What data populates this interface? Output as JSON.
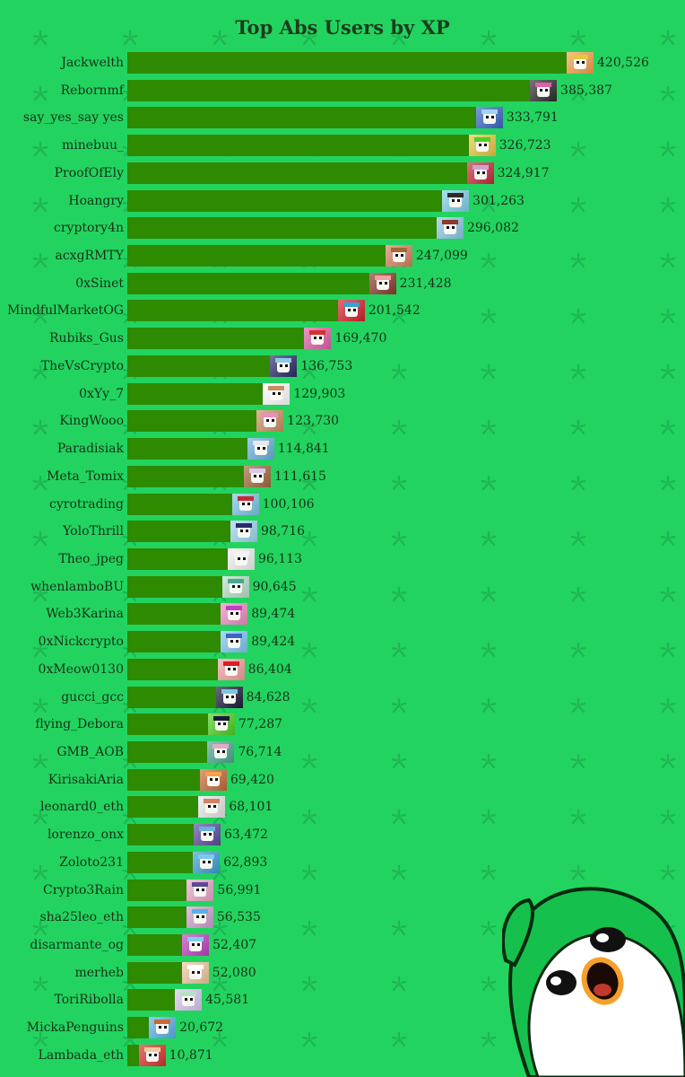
{
  "chart_data": {
    "type": "bar",
    "orientation": "horizontal",
    "title": "Top Abs Users by XP",
    "xlabel": "",
    "ylabel": "",
    "xlim": [
      0,
      420526
    ],
    "grid": false,
    "legend": "none",
    "categories": [
      "Jackwelth",
      "Rebornmf",
      "say_yes_say yes",
      "minebuu_",
      "ProofOfEly",
      "Hoangry",
      "cryptory4n",
      "acxgRMTY",
      "0xSinet",
      "MindfulMarketOG",
      "Rubiks_Gus",
      "TheVsCrypto",
      "0xYy_7",
      "KingWooo",
      "Paradisiak",
      "Meta_Tomix",
      "cyrotrading",
      "YoloThrill",
      "Theo_jpeg",
      "whenlamboBU",
      "Web3Karina",
      "0xNickcrypto",
      "0xMeow0130",
      "gucci_gcc",
      "flying_Debora",
      "GMB_AOB",
      "KirisakiAria",
      "leonard0_eth",
      "lorenzo_onx",
      "Zoloto231",
      "Crypto3Rain",
      "sha25leo_eth",
      "disarmante_og",
      "merheb",
      "ToriRibolla",
      "MickaPenguins",
      "Lambada_eth"
    ],
    "values": [
      420526,
      385387,
      333791,
      326723,
      324917,
      301263,
      296082,
      247099,
      231428,
      201542,
      169470,
      136753,
      129903,
      123730,
      114841,
      111615,
      100106,
      98716,
      96113,
      90645,
      89474,
      89424,
      86404,
      84628,
      77287,
      76714,
      69420,
      68101,
      63472,
      62893,
      56991,
      56535,
      52407,
      52080,
      45581,
      20672,
      10871
    ],
    "value_labels": [
      "420,526",
      "385,387",
      "333,791",
      "326,723",
      "324,917",
      "301,263",
      "296,082",
      "247,099",
      "231,428",
      "201,542",
      "169,470",
      "136,753",
      "129,903",
      "123,730",
      "114,841",
      "111,615",
      "100,106",
      "98,716",
      "96,113",
      "90,645",
      "89,474",
      "89,424",
      "86,404",
      "84,628",
      "77,287",
      "76,714",
      "69,420",
      "68,101",
      "63,472",
      "62,893",
      "56,991",
      "56,535",
      "52,407",
      "52,080",
      "45,581",
      "20,672",
      "10,871"
    ]
  },
  "colors": {
    "background": "#22d45f",
    "bar": "#2e8a00",
    "text": "#183018",
    "pattern": "#1eb653",
    "avatar_palette": [
      "#f6a04a",
      "#2b2b2b",
      "#3a64c8",
      "#e8c640",
      "#c8283a",
      "#7fd0e8",
      "#8cc8e6",
      "#d88060",
      "#8a3a2a",
      "#d81e2a",
      "#e060a8",
      "#2a2a6a",
      "#ffffff",
      "#c89060",
      "#6ab0e0",
      "#a06a3a",
      "#79c7e3",
      "#9fd6ef",
      "#f2f2f2",
      "#b8e0c8",
      "#f08cc0",
      "#7cc8f0",
      "#f4a0a0",
      "#1a1a3a",
      "#4ad020",
      "#48a890",
      "#c86a3a",
      "#e8e8e8",
      "#5a4a9a",
      "#3aa0d0",
      "#e8a8c8",
      "#d0a0d0",
      "#c040c0",
      "#f0c8a0",
      "#d8c8f0",
      "#5ab0e8",
      "#d8302a"
    ]
  },
  "mascot": {
    "icon": "penguin-mascot-icon"
  }
}
